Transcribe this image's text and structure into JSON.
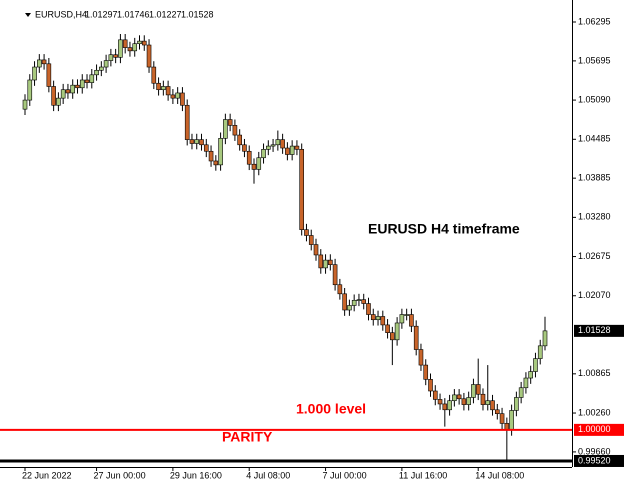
{
  "chart_data": {
    "type": "candlestick",
    "symbol": "EURUSD,H4",
    "annotations": [
      "EURUSD H4 timeframe",
      "1.000 level",
      "PARITY"
    ],
    "up_color": "#a8c97f",
    "down_color": "#c8642a",
    "ylim": [
      0.99427,
      1.06573
    ],
    "yticks": [
      1.06295,
      1.05695,
      {
        "value": 1.0509,
        "label": "1.05090"
      },
      1.04485,
      1.03885,
      {
        "value": 1.0328,
        "label": "1.03280"
      },
      1.02675,
      {
        "value": 1.0207,
        "label": "1.02070"
      },
      1.00865,
      {
        "value": 1.0026,
        "label": "1.00260"
      },
      {
        "value": 0.9966,
        "label": "0.99660"
      }
    ],
    "price_lines": [
      {
        "value": 1.0,
        "label": "1.00000",
        "color": "#ff0000"
      },
      {
        "value": 0.9952,
        "label": "0.99520",
        "color": "#000000"
      }
    ],
    "categories": [
      "22 Jun 2022",
      null,
      null,
      null,
      null,
      null,
      null,
      null,
      null,
      null,
      null,
      null,
      null,
      null,
      null,
      "27 Jun 00:00",
      null,
      null,
      null,
      null,
      null,
      null,
      null,
      null,
      null,
      null,
      null,
      null,
      null,
      null,
      null,
      "29 Jun 16:00",
      null,
      null,
      null,
      null,
      null,
      null,
      null,
      null,
      null,
      null,
      null,
      null,
      null,
      null,
      null,
      "4 Jul 08:00",
      null,
      null,
      null,
      null,
      null,
      null,
      null,
      null,
      null,
      null,
      null,
      null,
      null,
      null,
      null,
      "7 Jul 00:00",
      null,
      null,
      null,
      null,
      null,
      null,
      null,
      null,
      null,
      null,
      null,
      null,
      null,
      null,
      null,
      "11 Jul 16:00",
      null,
      null,
      null,
      null,
      null,
      null,
      null,
      null,
      null,
      null,
      null,
      null,
      null,
      null,
      null,
      "14 Jul 08:00",
      null,
      null,
      null,
      null,
      null,
      null,
      null,
      null,
      null,
      null,
      null,
      null,
      null,
      null
    ],
    "open": [
      1.0495,
      1.0509,
      1.054,
      1.056,
      1.0571,
      1.0565,
      1.053,
      1.0501,
      1.0512,
      1.0525,
      1.052,
      1.0532,
      1.0528,
      1.054,
      1.0536,
      1.0548,
      1.0555,
      1.056,
      1.057,
      1.0579,
      1.0575,
      1.0602,
      1.059,
      1.0585,
      1.0596,
      1.06,
      1.0594,
      1.056,
      1.0535,
      1.0525,
      1.053,
      1.0517,
      1.0512,
      1.052,
      1.0501,
      1.0448,
      1.0442,
      1.0448,
      1.044,
      1.043,
      1.0415,
      1.0409,
      1.045,
      1.0479,
      1.047,
      1.0455,
      1.044,
      1.043,
      1.041,
      1.0402,
      1.042,
      1.0433,
      1.0438,
      1.044,
      1.0448,
      1.0435,
      1.0425,
      1.0438,
      1.0433,
      1.0309,
      1.03,
      1.0286,
      1.027,
      1.025,
      1.0262,
      1.0255,
      1.0224,
      1.021,
      1.0185,
      1.0192,
      1.02,
      1.0201,
      1.0195,
      1.0178,
      1.017,
      1.0175,
      1.0162,
      1.015,
      1.0139,
      1.0165,
      1.0178,
      1.0178,
      1.016,
      1.0124,
      1.01,
      1.0078,
      1.006,
      1.0047,
      1.004,
      1.0031,
      1.0045,
      1.0054,
      1.0048,
      1.0039,
      1.005,
      1.007,
      1.0055,
      1.0039,
      1.0045,
      1.0031,
      1.0025,
      1.001,
      1.0,
      1.003,
      1.005,
      1.0065,
      1.008,
      1.009,
      1.011,
      1.01297
    ],
    "high": [
      1.0518,
      1.0549,
      1.0569,
      1.058,
      1.058,
      1.0574,
      1.0539,
      1.0521,
      1.0534,
      1.0534,
      1.0541,
      1.0541,
      1.0549,
      1.0549,
      1.0557,
      1.0564,
      1.0569,
      1.0579,
      1.0588,
      1.0588,
      1.0611,
      1.0611,
      1.0599,
      1.0605,
      1.0609,
      1.0609,
      1.0603,
      1.0569,
      1.0544,
      1.0539,
      1.0539,
      1.0526,
      1.0529,
      1.0529,
      1.051,
      1.0457,
      1.0457,
      1.0457,
      1.0449,
      1.0439,
      1.0424,
      1.0459,
      1.0488,
      1.0488,
      1.0479,
      1.0464,
      1.0449,
      1.0439,
      1.0419,
      1.0429,
      1.0442,
      1.0447,
      1.0449,
      1.0462,
      1.0457,
      1.0444,
      1.0447,
      1.0447,
      1.0442,
      1.0318,
      1.0309,
      1.0295,
      1.0279,
      1.0271,
      1.0271,
      1.0264,
      1.0233,
      1.0219,
      1.0201,
      1.0209,
      1.021,
      1.021,
      1.0204,
      1.0187,
      1.0184,
      1.0184,
      1.0171,
      1.0159,
      1.0174,
      1.0187,
      1.0187,
      1.0187,
      1.0169,
      1.0133,
      1.0109,
      1.0087,
      1.0069,
      1.0056,
      1.0049,
      1.0054,
      1.0063,
      1.0063,
      1.0057,
      1.0059,
      1.0079,
      1.011,
      1.0064,
      1.01,
      1.0054,
      1.004,
      1.0034,
      1.0019,
      1.0039,
      1.0059,
      1.0074,
      1.0089,
      1.0099,
      1.0119,
      1.0139,
      1.01746
    ],
    "low": [
      1.0486,
      1.05,
      1.0531,
      1.0551,
      1.0556,
      1.0521,
      1.0492,
      1.0492,
      1.0503,
      1.0511,
      1.0511,
      1.0519,
      1.0519,
      1.0527,
      1.0527,
      1.0539,
      1.0546,
      1.0551,
      1.0561,
      1.0566,
      1.0566,
      1.0581,
      1.0576,
      1.0576,
      1.0587,
      1.0585,
      1.0551,
      1.0526,
      1.0516,
      1.0516,
      1.0508,
      1.0503,
      1.0503,
      1.0492,
      1.0439,
      1.0433,
      1.0433,
      1.0431,
      1.0421,
      1.0406,
      1.04,
      1.04,
      1.0441,
      1.0461,
      1.0446,
      1.0431,
      1.0421,
      1.0401,
      1.038,
      1.0393,
      1.0411,
      1.0424,
      1.0429,
      1.0431,
      1.0426,
      1.0416,
      1.0416,
      1.0424,
      1.03,
      1.0291,
      1.0277,
      1.0261,
      1.0241,
      1.0241,
      1.0246,
      1.0215,
      1.0201,
      1.0176,
      1.0176,
      1.0183,
      1.0191,
      1.0186,
      1.0169,
      1.0161,
      1.0161,
      1.0153,
      1.0141,
      1.01,
      1.013,
      1.0156,
      1.0169,
      1.0151,
      1.0115,
      1.0091,
      1.0069,
      1.0051,
      1.0038,
      1.0031,
      1.0005,
      1.0022,
      1.0036,
      1.0039,
      1.003,
      1.003,
      1.0041,
      1.0046,
      1.003,
      1.003,
      1.0022,
      1.0016,
      1.0001,
      0.9952,
      0.9991,
      1.0021,
      1.0041,
      1.0056,
      1.0071,
      1.0081,
      1.0101,
      1.01227
    ],
    "close": [
      1.0509,
      1.054,
      1.056,
      1.0571,
      1.0565,
      1.053,
      1.0501,
      1.0512,
      1.0525,
      1.052,
      1.0532,
      1.0528,
      1.054,
      1.0536,
      1.0548,
      1.0555,
      1.056,
      1.057,
      1.0579,
      1.0575,
      1.0602,
      1.059,
      1.0585,
      1.0596,
      1.06,
      1.0594,
      1.056,
      1.0535,
      1.0525,
      1.053,
      1.0517,
      1.0512,
      1.052,
      1.0501,
      1.0448,
      1.0442,
      1.0448,
      1.044,
      1.043,
      1.0415,
      1.0409,
      1.045,
      1.0479,
      1.047,
      1.0455,
      1.044,
      1.043,
      1.041,
      1.0402,
      1.042,
      1.0433,
      1.0438,
      1.044,
      1.0448,
      1.0435,
      1.0425,
      1.0438,
      1.0433,
      1.0309,
      1.03,
      1.0286,
      1.027,
      1.025,
      1.0262,
      1.0255,
      1.0224,
      1.021,
      1.0185,
      1.0192,
      1.02,
      1.0201,
      1.0195,
      1.0178,
      1.017,
      1.0175,
      1.0162,
      1.015,
      1.0139,
      1.0165,
      1.0178,
      1.0178,
      1.016,
      1.0124,
      1.01,
      1.0078,
      1.006,
      1.0047,
      1.004,
      1.0031,
      1.0045,
      1.0054,
      1.0048,
      1.0039,
      1.005,
      1.007,
      1.0055,
      1.0039,
      1.0045,
      1.0031,
      1.0025,
      1.001,
      1.0,
      1.003,
      1.005,
      1.0065,
      1.008,
      1.009,
      1.011,
      1.01297,
      1.01528
    ]
  }
}
